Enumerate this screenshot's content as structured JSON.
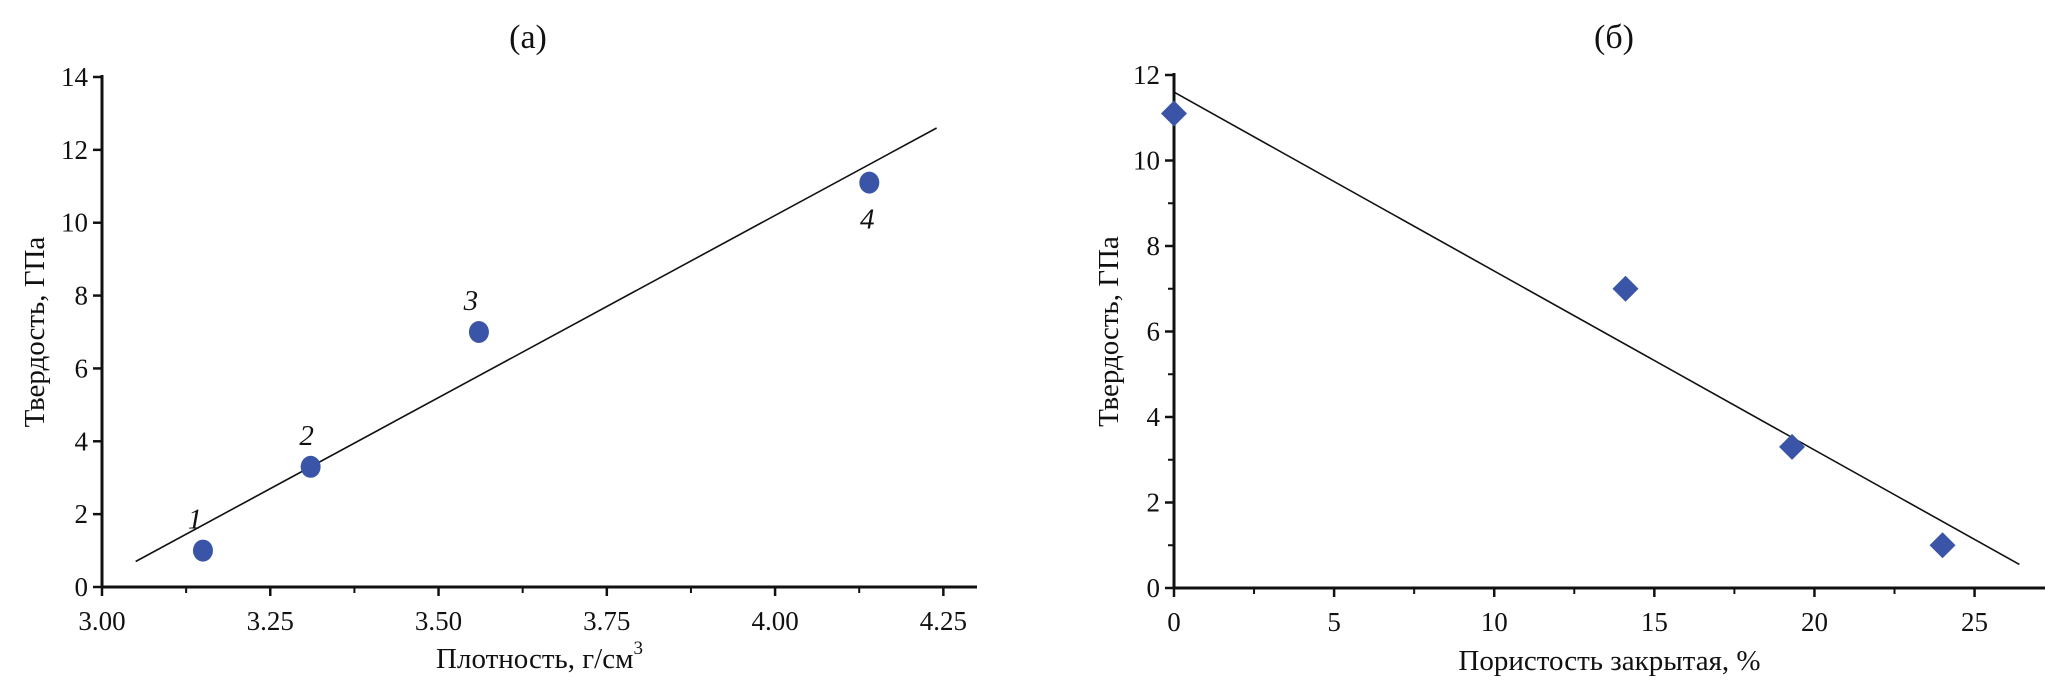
{
  "chart_data": [
    {
      "type": "scatter",
      "title": "(a)",
      "xlabel": "Плотность, г/см",
      "xlabel_superscript": "3",
      "ylabel": "Твердость, ГПа",
      "xlim": [
        3.0,
        4.3
      ],
      "ylim": [
        0,
        14
      ],
      "xticks": [
        "3.00",
        "3.25",
        "3.50",
        "3.75",
        "4.00",
        "4.25"
      ],
      "yticks": [
        "0",
        "2",
        "4",
        "6",
        "8",
        "10",
        "12",
        "14"
      ],
      "grid": false,
      "marker": "circle",
      "marker_color": "#3a55a8",
      "points": [
        {
          "x": 3.15,
          "y": 1.0,
          "label": "1"
        },
        {
          "x": 3.31,
          "y": 3.3,
          "label": "2"
        },
        {
          "x": 3.56,
          "y": 7.0,
          "label": "3"
        },
        {
          "x": 4.14,
          "y": 11.1,
          "label": "4"
        }
      ],
      "fit_line": {
        "x": [
          3.05,
          4.24
        ],
        "y": [
          0.7,
          12.6
        ]
      }
    },
    {
      "type": "scatter",
      "title": "(б)",
      "xlabel": "Пористость закрытая, %",
      "ylabel": "Твердость, ГПа",
      "xlim": [
        0,
        27.2
      ],
      "ylim": [
        0,
        12
      ],
      "xticks": [
        "0",
        "5",
        "10",
        "15",
        "20",
        "25"
      ],
      "yticks": [
        "0",
        "2",
        "4",
        "6",
        "8",
        "10",
        "12"
      ],
      "grid": false,
      "marker": "diamond",
      "marker_color": "#3a55a8",
      "points": [
        {
          "x": 0,
          "y": 11.1
        },
        {
          "x": 14.1,
          "y": 7.0
        },
        {
          "x": 19.3,
          "y": 3.3
        },
        {
          "x": 24.0,
          "y": 1.0
        }
      ],
      "fit_line": {
        "x": [
          0,
          26.4
        ],
        "y": [
          11.6,
          0.55
        ]
      }
    }
  ]
}
